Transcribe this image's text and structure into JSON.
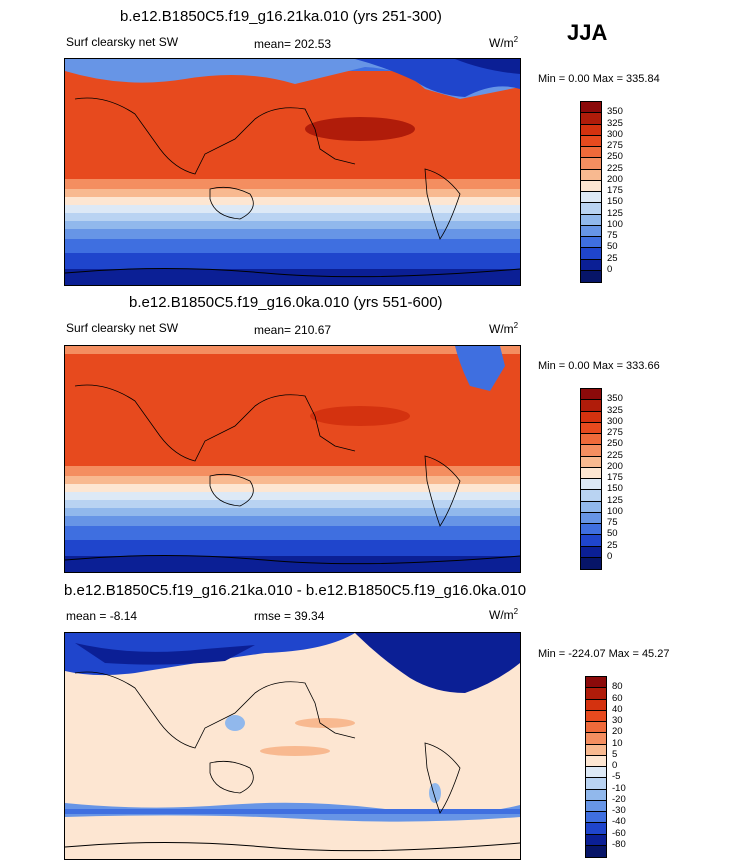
{
  "season": "JJA",
  "units_prefix": "W/m",
  "units_exp": "2",
  "panels": [
    {
      "title": "b.e12.B1850C5.f19_g16.21ka.010 (yrs 251-300)",
      "left_text": "Surf clearsky net SW",
      "center_text": "mean= 202.53",
      "minmax": "Min =   0.00 Max = 335.84"
    },
    {
      "title": "b.e12.B1850C5.f19_g16.0ka.010 (yrs 551-600)",
      "left_text": "Surf clearsky net SW",
      "center_text": "mean= 210.67",
      "minmax": "Min =   0.00 Max = 333.66"
    },
    {
      "title": "b.e12.B1850C5.f19_g16.21ka.010 - b.e12.B1850C5.f19_g16.0ka.010",
      "left_text": "mean =  -8.14",
      "center_text": "rmse =  39.34",
      "minmax": "Min = -224.07 Max =  45.27"
    }
  ],
  "colorbar_abs": {
    "labels": [
      "350",
      "325",
      "300",
      "275",
      "250",
      "225",
      "200",
      "175",
      "150",
      "125",
      "100",
      "75",
      "50",
      "25",
      "0"
    ],
    "colors": [
      "#8b0a0a",
      "#b01c0a",
      "#d4320f",
      "#e74a1e",
      "#ef6a3a",
      "#f48e60",
      "#f8b990",
      "#fde6d2",
      "#dde9f6",
      "#b9d3f2",
      "#91b8ec",
      "#6795e6",
      "#3f6fe0",
      "#1f45cc",
      "#0b1f95",
      "#071568"
    ]
  },
  "colorbar_diff": {
    "labels": [
      "80",
      "60",
      "40",
      "30",
      "20",
      "10",
      "5",
      "0",
      "-5",
      "-10",
      "-20",
      "-30",
      "-40",
      "-60",
      "-80"
    ],
    "colors": [
      "#8b0a0a",
      "#b01c0a",
      "#d4320f",
      "#e74a1e",
      "#ef6a3a",
      "#f48e60",
      "#f8b990",
      "#fde6d2",
      "#dde9f6",
      "#b9d3f2",
      "#91b8ec",
      "#6795e6",
      "#3f6fe0",
      "#1f45cc",
      "#0b1f95",
      "#071568"
    ]
  },
  "chart_data": [
    {
      "type": "heatmap",
      "title": "b.e12.B1850C5.f19_g16.21ka.010 (yrs 251-300)",
      "variable": "Surf clearsky net SW",
      "season": "JJA",
      "units": "W/m2",
      "mean": 202.53,
      "min": 0.0,
      "max": 335.84,
      "contour_levels": [
        0,
        25,
        50,
        75,
        100,
        125,
        150,
        175,
        200,
        225,
        250,
        275,
        300,
        325,
        350
      ]
    },
    {
      "type": "heatmap",
      "title": "b.e12.B1850C5.f19_g16.0ka.010 (yrs 551-600)",
      "variable": "Surf clearsky net SW",
      "season": "JJA",
      "units": "W/m2",
      "mean": 210.67,
      "min": 0.0,
      "max": 333.66,
      "contour_levels": [
        0,
        25,
        50,
        75,
        100,
        125,
        150,
        175,
        200,
        225,
        250,
        275,
        300,
        325,
        350
      ]
    },
    {
      "type": "heatmap",
      "title": "b.e12.B1850C5.f19_g16.21ka.010 - b.e12.B1850C5.f19_g16.0ka.010",
      "season": "JJA",
      "units": "W/m2",
      "mean": -8.14,
      "rmse": 39.34,
      "min": -224.07,
      "max": 45.27,
      "contour_levels": [
        -80,
        -60,
        -40,
        -30,
        -20,
        -10,
        -5,
        0,
        5,
        10,
        20,
        30,
        40,
        60,
        80
      ]
    }
  ]
}
